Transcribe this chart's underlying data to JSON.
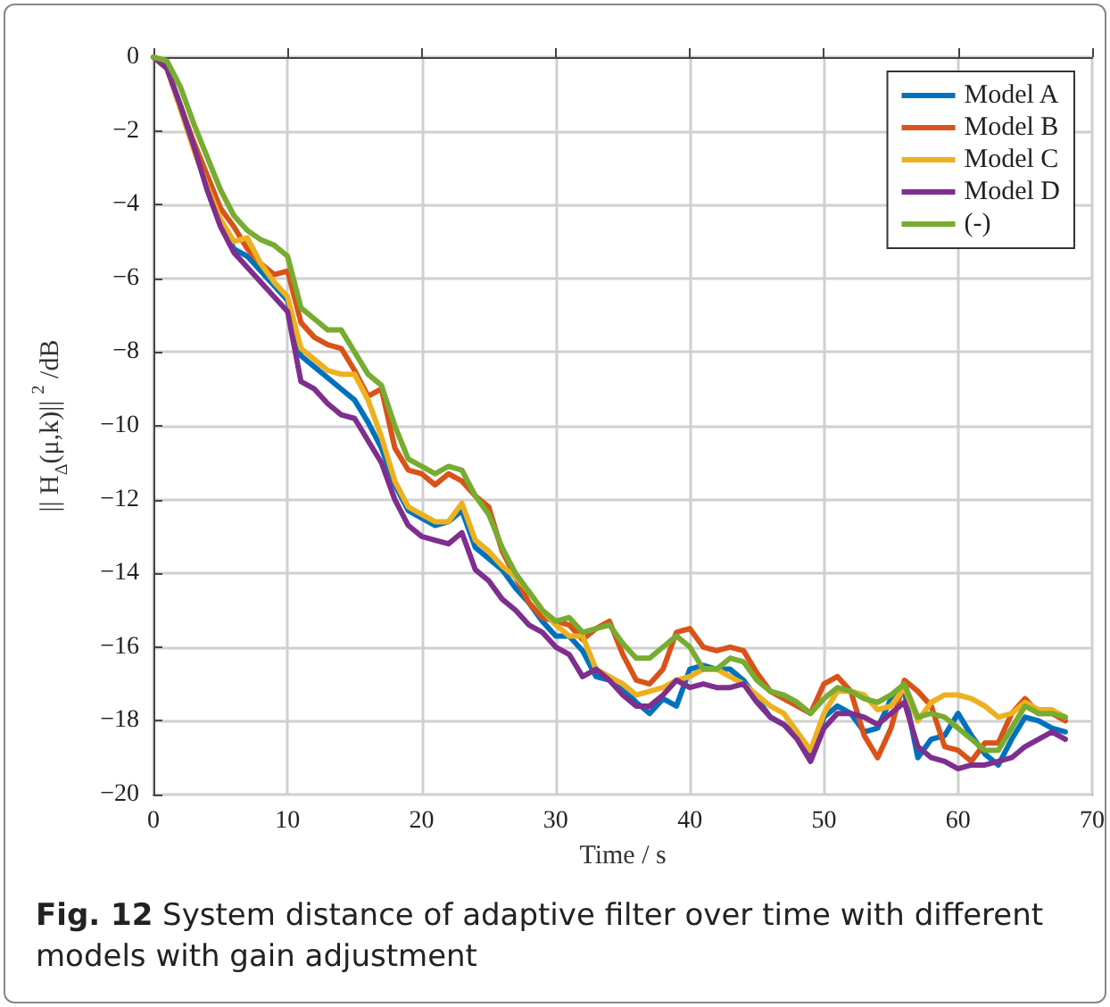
{
  "chart_data": {
    "type": "line",
    "xlabel": "Time / s",
    "ylabel": "|| H$_{Δ}$(μ,k)|| $^{2}$ /dB",
    "annotations": [
      "Fig. 12 System distance of adaptive filter over time with different models with gain adjustment"
    ],
    "x": [
      0,
      1,
      2,
      3,
      4,
      5,
      6,
      7,
      8,
      9,
      10,
      11,
      12,
      13,
      14,
      15,
      16,
      17,
      18,
      19,
      20,
      21,
      22,
      23,
      24,
      25,
      26,
      27,
      28,
      29,
      30,
      31,
      32,
      33,
      34,
      35,
      36,
      37,
      38,
      39,
      40,
      41,
      42,
      43,
      44,
      45,
      46,
      47,
      48,
      49,
      50,
      51,
      52,
      53,
      54,
      55,
      56,
      57,
      58,
      59,
      60,
      61,
      62,
      63,
      64,
      65,
      66,
      67,
      68
    ],
    "series": [
      {
        "name": "Model A",
        "color": "#0072bd",
        "values": [
          null,
          null,
          null,
          null,
          null,
          -4.5,
          -5.2,
          -5.4,
          -5.8,
          -6.2,
          -6.6,
          -8.1,
          -8.4,
          -8.7,
          -9.0,
          -9.3,
          -9.9,
          -10.6,
          -11.6,
          -12.3,
          -12.5,
          -12.7,
          -12.6,
          -12.3,
          -13.3,
          -13.6,
          -13.9,
          -14.4,
          -14.8,
          -15.3,
          -15.7,
          -15.7,
          -16.1,
          -16.8,
          -16.9,
          -17.1,
          -17.5,
          -17.8,
          -17.4,
          -17.6,
          -16.6,
          -16.5,
          -16.6,
          -16.6,
          -16.9,
          -17.4,
          -17.9,
          -18.1,
          -18.4,
          -19.0,
          -17.9,
          -17.6,
          -17.8,
          -18.3,
          -18.2,
          -17.4,
          -17.2,
          -19.0,
          -18.5,
          -18.4,
          -17.8,
          -18.4,
          -18.9,
          -19.2,
          -18.5,
          -17.9,
          -18.0,
          -18.2,
          -18.3
        ]
      },
      {
        "name": "Model B",
        "color": "#d95319",
        "values": [
          0,
          -0.3,
          -1.3,
          -2.3,
          -3.2,
          -4.1,
          -4.6,
          -5.2,
          -5.6,
          -5.9,
          -5.8,
          -7.2,
          -7.6,
          -7.8,
          -7.9,
          -8.5,
          -9.2,
          -9.0,
          -10.6,
          -11.2,
          -11.3,
          -11.6,
          -11.3,
          -11.5,
          -11.9,
          -12.2,
          -13.4,
          -14.1,
          -14.8,
          -15.2,
          -15.3,
          -15.4,
          -15.8,
          -15.5,
          -15.3,
          -16.2,
          -16.9,
          -17.0,
          -16.6,
          -15.6,
          -15.5,
          -16.0,
          -16.1,
          -16.0,
          -16.1,
          -16.7,
          -17.2,
          -17.4,
          -17.6,
          -17.8,
          -17.0,
          -16.8,
          -17.2,
          -18.4,
          -19.0,
          -18.2,
          -16.9,
          -17.2,
          -17.6,
          -18.7,
          -18.8,
          -19.1,
          -18.6,
          -18.6,
          -17.8,
          -17.4,
          -17.8,
          -17.8,
          -18.0
        ]
      },
      {
        "name": "Model C",
        "color": "#edb120",
        "values": [
          0,
          -0.3,
          -1.4,
          -2.5,
          -3.5,
          -4.4,
          -5.0,
          -4.9,
          -5.6,
          -6.1,
          -6.5,
          -7.9,
          -8.2,
          -8.5,
          -8.6,
          -8.6,
          -9.3,
          -10.3,
          -11.5,
          -12.2,
          -12.4,
          -12.6,
          -12.6,
          -12.1,
          -13.1,
          -13.4,
          -13.8,
          -14.1,
          -14.5,
          -15.0,
          -15.4,
          -15.7,
          -15.7,
          -16.6,
          -16.8,
          -17.0,
          -17.3,
          -17.2,
          -17.1,
          -16.9,
          -16.8,
          -16.6,
          -16.6,
          -16.8,
          -17.0,
          -17.3,
          -17.6,
          -17.8,
          -18.3,
          -18.8,
          -17.8,
          -17.2,
          -17.2,
          -17.3,
          -17.7,
          -17.6,
          -17.1,
          -18.0,
          -17.5,
          -17.3,
          -17.3,
          -17.4,
          -17.6,
          -17.9,
          -17.8,
          -17.5,
          -17.7,
          -17.7,
          -17.9
        ]
      },
      {
        "name": "Model D",
        "color": "#7e2f8e",
        "values": [
          0,
          -0.3,
          -1.3,
          -2.4,
          -3.6,
          -4.6,
          -5.3,
          -5.7,
          -6.1,
          -6.5,
          -6.9,
          -8.8,
          -9.0,
          -9.4,
          -9.7,
          -9.8,
          -10.4,
          -11.0,
          -12.0,
          -12.7,
          -13.0,
          -13.1,
          -13.2,
          -12.9,
          -13.9,
          -14.2,
          -14.7,
          -15.0,
          -15.4,
          -15.6,
          -16.0,
          -16.2,
          -16.8,
          -16.6,
          -16.9,
          -17.3,
          -17.6,
          -17.6,
          -17.3,
          -16.9,
          -17.1,
          -17.0,
          -17.1,
          -17.1,
          -17.0,
          -17.5,
          -17.9,
          -18.1,
          -18.5,
          -19.1,
          -18.2,
          -17.8,
          -17.8,
          -17.9,
          -18.1,
          -17.8,
          -17.5,
          -18.7,
          -19.0,
          -19.1,
          -19.3,
          -19.2,
          -19.2,
          -19.1,
          -19.0,
          -18.7,
          -18.5,
          -18.3,
          -18.5
        ]
      },
      {
        "name": "(-)",
        "color": "#77ac30",
        "values": [
          0,
          -0.1,
          -0.8,
          -1.8,
          -2.7,
          -3.6,
          -4.3,
          -4.7,
          -4.95,
          -5.1,
          -5.4,
          -6.8,
          -7.1,
          -7.4,
          -7.4,
          -8.0,
          -8.6,
          -8.9,
          -10.0,
          -10.9,
          -11.1,
          -11.3,
          -11.1,
          -11.2,
          -11.9,
          -12.4,
          -13.3,
          -14.0,
          -14.5,
          -15.0,
          -15.3,
          -15.2,
          -15.6,
          -15.5,
          -15.4,
          -15.9,
          -16.3,
          -16.3,
          -16.0,
          -15.7,
          -16.0,
          -16.6,
          -16.6,
          -16.3,
          -16.4,
          -16.9,
          -17.2,
          -17.3,
          -17.5,
          -17.8,
          -17.4,
          -17.1,
          -17.2,
          -17.4,
          -17.5,
          -17.3,
          -17.0,
          -17.9,
          -17.8,
          -17.9,
          -18.2,
          -18.5,
          -18.8,
          -18.8,
          -18.2,
          -17.6,
          -17.8,
          -17.8,
          -17.9
        ]
      }
    ],
    "xlim": [
      0,
      70
    ],
    "xticks": [
      0,
      10,
      20,
      30,
      40,
      50,
      60,
      70
    ],
    "ylim": [
      -20,
      0
    ],
    "yticks": [
      -20,
      -18,
      -16,
      -14,
      -12,
      -10,
      -8,
      -6,
      -4,
      -2,
      0
    ],
    "grid": true,
    "legend": "top right",
    "line_style": "solid",
    "marker": "none"
  }
}
